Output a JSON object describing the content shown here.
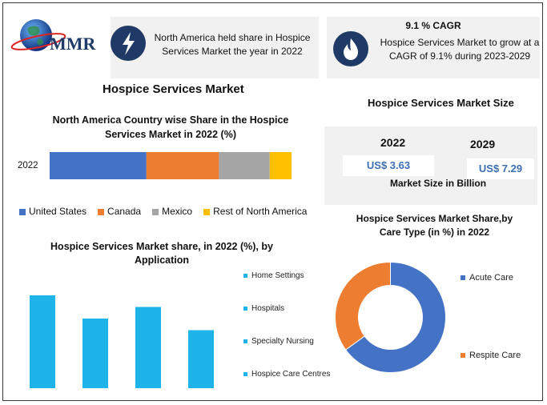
{
  "logo": {
    "text": "MMR"
  },
  "stat_cards": {
    "left_text": "North America held share in Hospice Services Market the year in 2022",
    "right_title": "9.1 % CAGR",
    "right_text": "Hospice Services Market to grow at a CAGR of 9.1% during 2023-2029"
  },
  "main_title": "Hospice Services Market",
  "market_size": {
    "title": "Hospice Services Market Size",
    "year_2022": "2022",
    "year_2029": "2029",
    "value_2022": "US$ 3.63",
    "value_2029": "US$ 7.29",
    "caption": "Market Size in Billion"
  },
  "colors": {
    "blue": "#4472c4",
    "orange": "#ed7d31",
    "gray": "#a5a5a5",
    "yellow": "#ffc000",
    "cyan": "#1eb4ea",
    "navy": "#1f3a66"
  },
  "chart_data": [
    {
      "type": "bar",
      "orientation": "horizontal-stacked",
      "title": "North America Country wise Share in the Hospice Services Market in 2022 (%)",
      "categories": [
        "2022"
      ],
      "series": [
        {
          "name": "United States",
          "values": [
            40
          ],
          "color": "#4472c4"
        },
        {
          "name": "Canada",
          "values": [
            30
          ],
          "color": "#ed7d31"
        },
        {
          "name": "Mexico",
          "values": [
            21
          ],
          "color": "#a5a5a5"
        },
        {
          "name": "Rest of North America",
          "values": [
            9
          ],
          "color": "#ffc000"
        }
      ],
      "legend": "bottom"
    },
    {
      "type": "bar",
      "title": "Hospice Services Market share, in 2022 (%), by Application",
      "categories": [
        "Home Settings",
        "Hospitals",
        "Specialty Nursing",
        "Hospice Care Centres"
      ],
      "values": [
        32,
        24,
        28,
        20
      ],
      "ylim": [
        0,
        40
      ],
      "color": "#1eb4ea",
      "legend": "right"
    },
    {
      "type": "pie",
      "style": "donut",
      "title": "Hospice Services Market Share,by Care Type  (in %) in 2022",
      "labels": [
        "Acute Care",
        "Respite Care"
      ],
      "values": [
        65,
        35
      ],
      "colors": [
        "#4472c4",
        "#ed7d31"
      ],
      "legend": "right"
    }
  ]
}
